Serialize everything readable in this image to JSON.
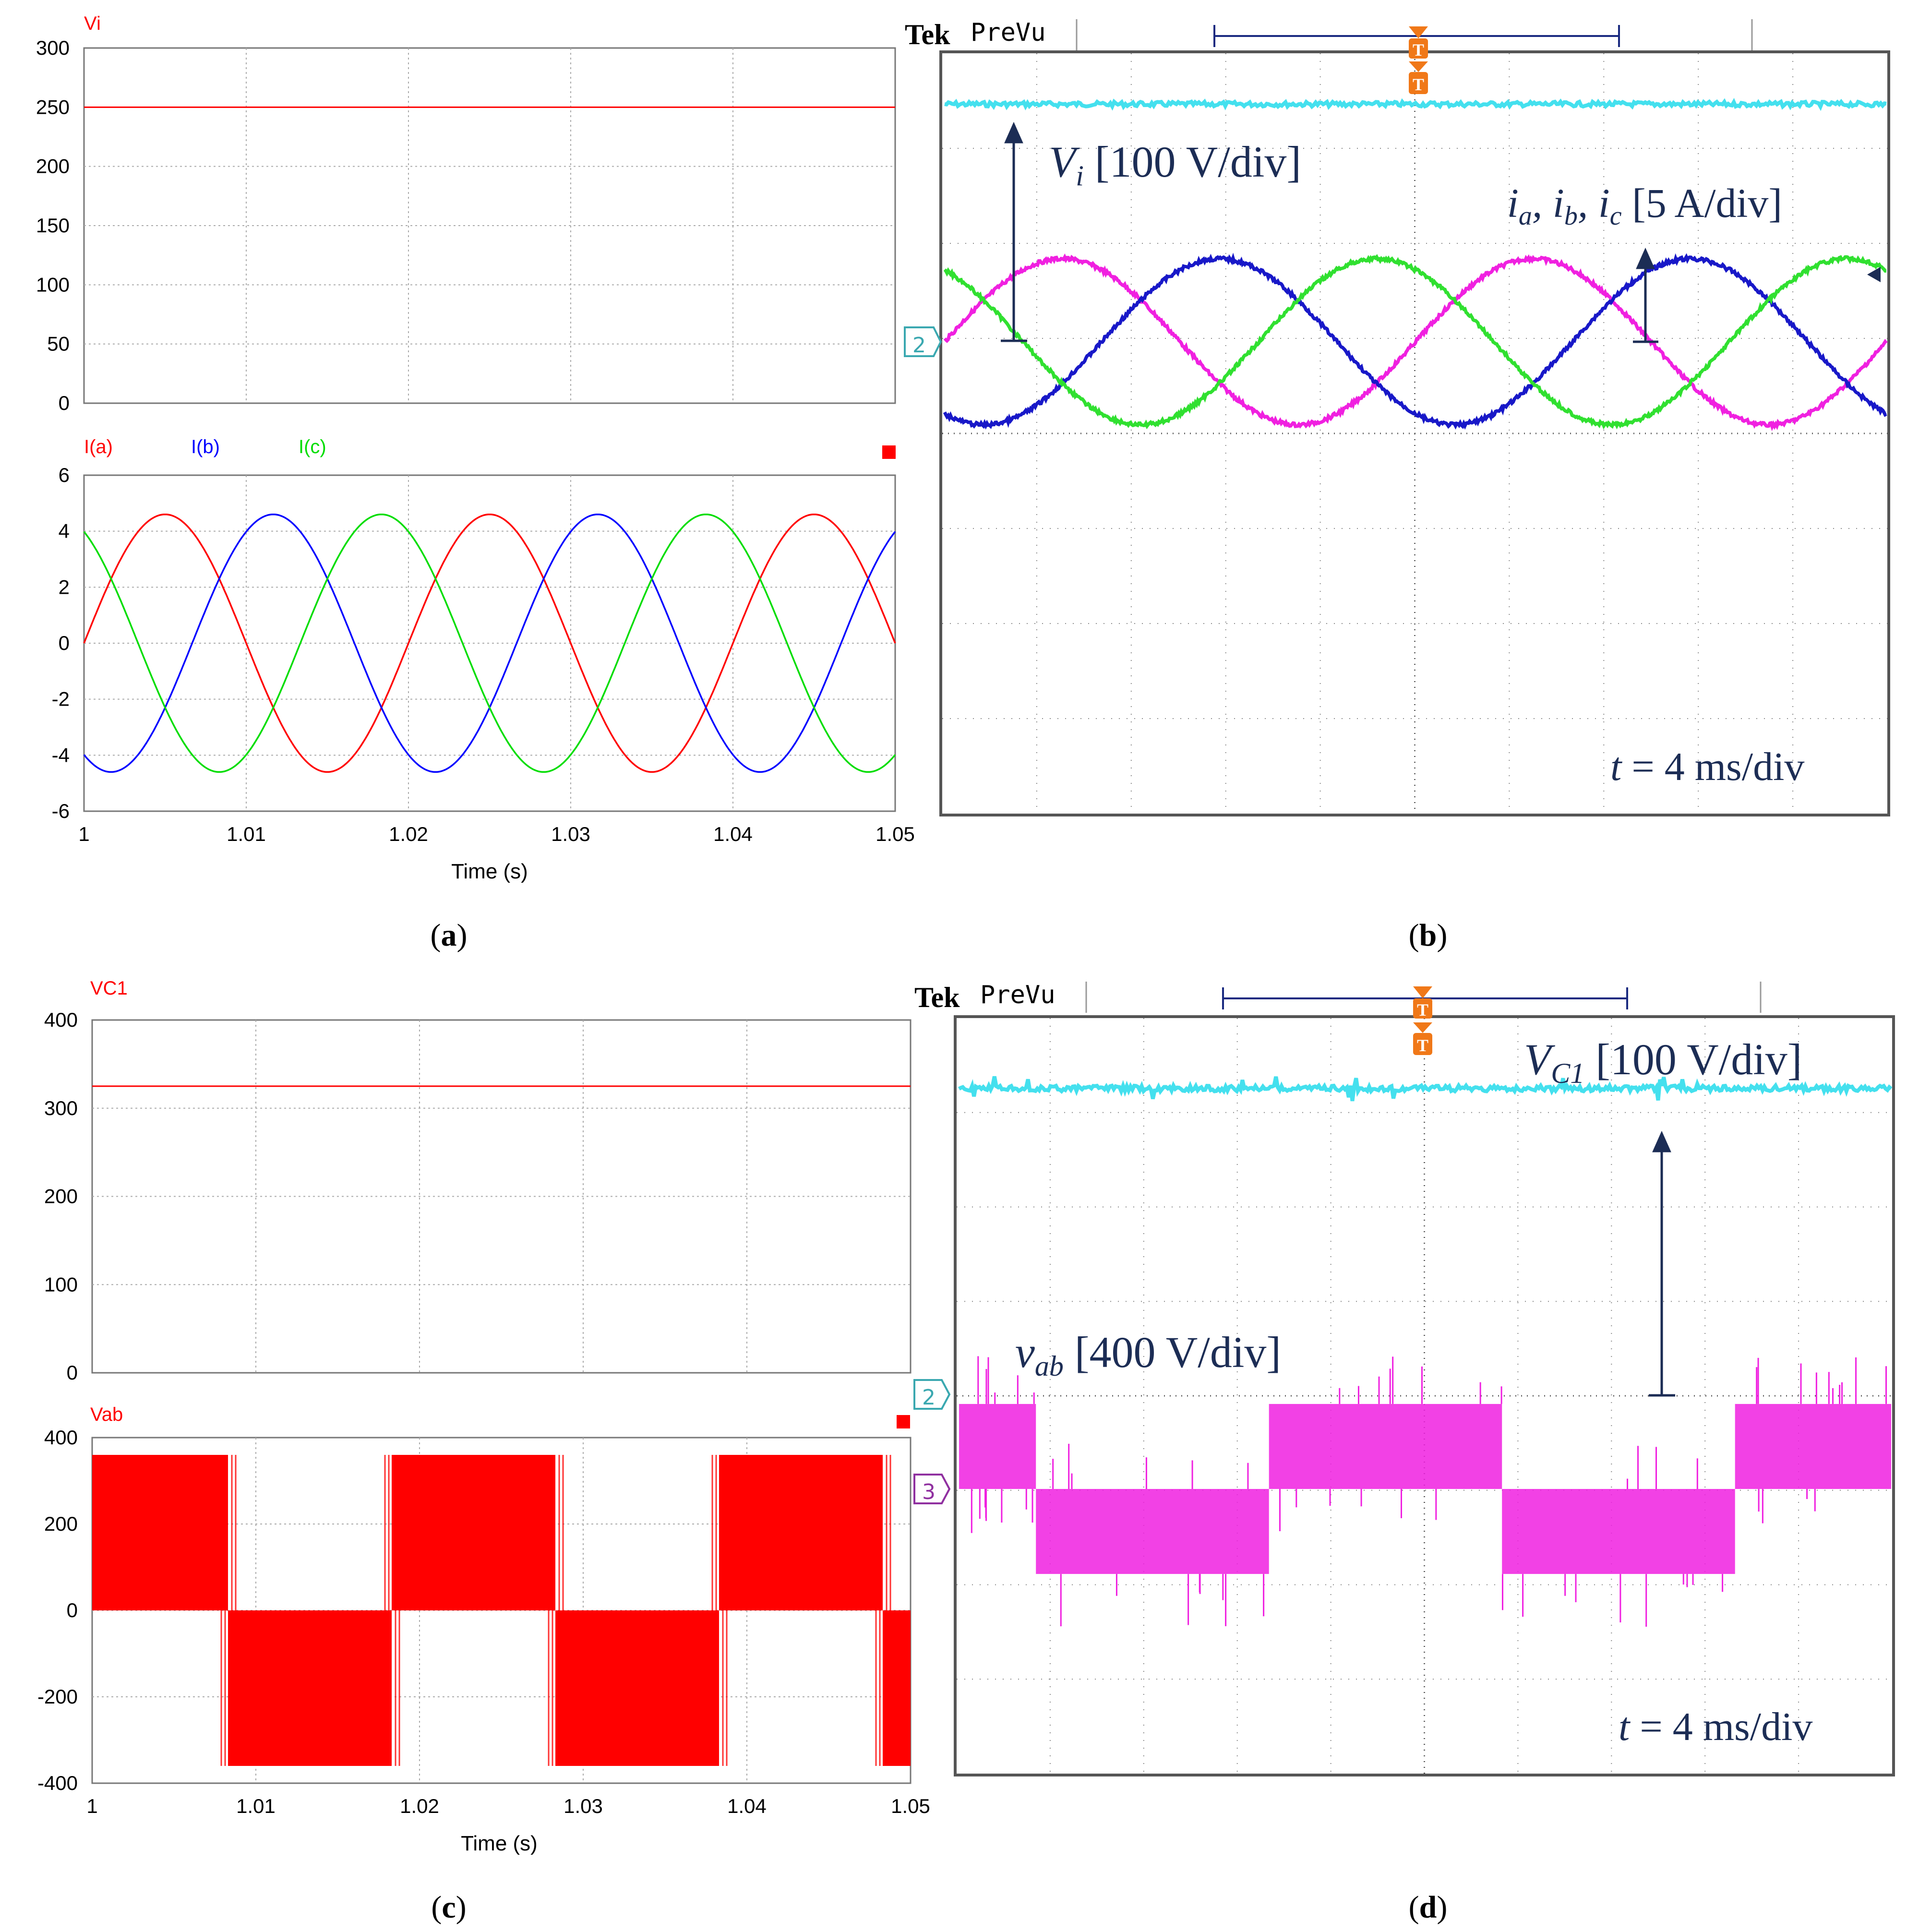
{
  "captions": [
    "a",
    "b",
    "c",
    "d"
  ],
  "colors": {
    "red": "#ff0000",
    "blue": "#0000ff",
    "green": "#00dd00",
    "cyan": "#44e0ee",
    "magenta": "#f020e0",
    "scope_blue": "#1818c8",
    "scope_green": "#30e030",
    "annot": "#1c2d55",
    "trigger": "#f07818",
    "ch_teal": "#3aa8b0",
    "ch_purple": "#9030a0"
  },
  "icons": [
    "trigger-marker-icon",
    "channel-2-marker-icon",
    "channel-3-marker-icon",
    "arrow-icon",
    "stop-square-icon"
  ],
  "chart_data": [
    {
      "id": "a-top",
      "type": "line",
      "title": "",
      "xlabel": "",
      "ylabel": "",
      "xlim": [
        1.0,
        1.05
      ],
      "ylim": [
        0,
        300
      ],
      "yticks": [
        "300",
        "250",
        "200",
        "150",
        "100",
        "50",
        "0"
      ],
      "grid": true,
      "series": [
        {
          "name": "Vi",
          "x": [
            1.0,
            1.05
          ],
          "values": [
            250,
            250
          ],
          "color": "#ff0000"
        }
      ]
    },
    {
      "id": "a-bottom",
      "type": "line",
      "xlabel": "Time (s)",
      "ylabel": "",
      "xlim": [
        1.0,
        1.05
      ],
      "ylim": [
        -6,
        6
      ],
      "xticks": [
        "1",
        "1.01",
        "1.02",
        "1.03",
        "1.04",
        "1.05"
      ],
      "yticks": [
        "6",
        "4",
        "2",
        "0",
        "-2",
        "-4",
        "-6"
      ],
      "grid": true,
      "waveform": {
        "amplitude": 4.6,
        "frequency_hz": 50,
        "t0": 1.0
      },
      "series": [
        {
          "name": "I(a)",
          "phase_deg": 0,
          "color": "#ff0000"
        },
        {
          "name": "I(b)",
          "phase_deg": -120,
          "color": "#0000ff"
        },
        {
          "name": "I(c)",
          "phase_deg": 120,
          "color": "#00dd00"
        }
      ]
    },
    {
      "id": "b",
      "type": "line",
      "title": "Tek PreVu",
      "xlim": [
        0,
        40
      ],
      "time_per_div": "t = 4 ms/div",
      "series": [
        {
          "name": "Vi",
          "label": "Vi [100 V/div]",
          "level_V": 250,
          "color": "#44e0ee"
        },
        {
          "name": "ia",
          "phase_deg": 0,
          "color": "#f020e0"
        },
        {
          "name": "ib",
          "phase_deg": -120,
          "color": "#1818c8"
        },
        {
          "name": "ic",
          "phase_deg": 120,
          "color": "#30e030"
        }
      ],
      "current_label": "ia, ib, ic [5 A/div]",
      "amplitude_A": 4.6,
      "frequency_hz": 50,
      "channel_marker": "2"
    },
    {
      "id": "c-top",
      "type": "line",
      "xlim": [
        1.0,
        1.05
      ],
      "ylim": [
        0,
        400
      ],
      "yticks": [
        "400",
        "300",
        "200",
        "100",
        "0"
      ],
      "grid": true,
      "series": [
        {
          "name": "VC1",
          "x": [
            1.0,
            1.05
          ],
          "values": [
            325,
            325
          ],
          "color": "#ff0000"
        }
      ]
    },
    {
      "id": "c-bottom",
      "type": "area",
      "xlabel": "Time (s)",
      "xlim": [
        1.0,
        1.05
      ],
      "ylim": [
        -400,
        400
      ],
      "xticks": [
        "1",
        "1.01",
        "1.02",
        "1.03",
        "1.04",
        "1.05"
      ],
      "yticks": [
        "400",
        "200",
        "0",
        "-200",
        "-400"
      ],
      "grid": true,
      "series": [
        {
          "name": "Vab",
          "color": "#ff0000",
          "segments": [
            {
              "x0": 1.0,
              "x1": 1.0083,
              "value": 360
            },
            {
              "x0": 1.0083,
              "x1": 1.0183,
              "value": -360
            },
            {
              "x0": 1.0183,
              "x1": 1.0283,
              "value": 360
            },
            {
              "x0": 1.0283,
              "x1": 1.0383,
              "value": -360
            },
            {
              "x0": 1.0383,
              "x1": 1.0483,
              "value": 360
            },
            {
              "x0": 1.0483,
              "x1": 1.05,
              "value": -360
            }
          ]
        }
      ]
    },
    {
      "id": "d",
      "type": "line",
      "title": "Tek PreVu",
      "xlim": [
        0,
        40
      ],
      "time_per_div": "t = 4 ms/div",
      "series": [
        {
          "name": "VC1",
          "label": "VC1 [100 V/div]",
          "level_V": 325,
          "color": "#44e0ee"
        },
        {
          "name": "vab",
          "label": "vab [400 V/div]",
          "levels_V": [
            360,
            0,
            -360
          ],
          "color": "#f020e0"
        }
      ],
      "channel_markers": [
        "2",
        "3"
      ]
    }
  ],
  "text": {
    "vi": "Vi",
    "ia": "I(a)",
    "ib": "I(b)",
    "ic": "I(c)",
    "time": "Time (s)",
    "vc1": "VC1",
    "vab": "Vab",
    "tek": "Tek",
    "prevu": "PreVu",
    "trig": "T",
    "ch2": "2",
    "ch3": "3",
    "tdiv_t": "t",
    "tdiv_rest": " = 4 ms/div",
    "b_vi_V": "V",
    "b_vi_sub": "i",
    "b_vi_scale": " [100 V/div]",
    "b_i_a": "i",
    "b_i_a_sub": "a",
    "b_i_b": ", i",
    "b_i_b_sub": "b",
    "b_i_c": ", i",
    "b_i_c_sub": "c",
    "b_i_scale": " [5 A/div]",
    "d_vc_V": "V",
    "d_vc_sub": "C1",
    "d_vc_scale": " [100 V/div]",
    "d_vab_v": "v",
    "d_vab_sub": "ab",
    "d_vab_scale": " [400 V/div]"
  }
}
